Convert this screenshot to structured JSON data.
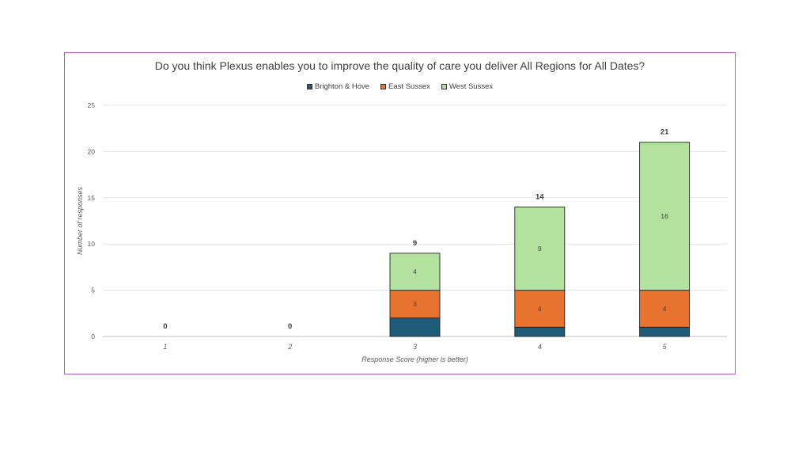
{
  "chart_data": {
    "type": "bar",
    "stacked": true,
    "title": "Do you think Plexus enables you to improve the quality of care you deliver All Regions for All Dates?",
    "xlabel": "Response Score (higher is better)",
    "ylabel": "Number of responses",
    "categories": [
      "1",
      "2",
      "3",
      "4",
      "5"
    ],
    "series": [
      {
        "name": "Brighton & Hove",
        "color": "#1f5c7a",
        "values": [
          0,
          0,
          2,
          1,
          1
        ],
        "labels": [
          "",
          "",
          "",
          "",
          ""
        ]
      },
      {
        "name": "East Sussex",
        "color": "#e8722f",
        "values": [
          0,
          0,
          3,
          4,
          4
        ],
        "labels": [
          "",
          "",
          "3",
          "4",
          "4"
        ]
      },
      {
        "name": "West Sussex",
        "color": "#b3e29f",
        "values": [
          0,
          0,
          4,
          9,
          16
        ],
        "labels": [
          "",
          "",
          "4",
          "9",
          "16"
        ]
      }
    ],
    "totals": [
      "0",
      "0",
      "9",
      "14",
      "21"
    ],
    "ylim": [
      0,
      25
    ],
    "yticks": [
      "0",
      "5",
      "10",
      "15",
      "20",
      "25"
    ],
    "grid": true,
    "legend": "top-center"
  }
}
